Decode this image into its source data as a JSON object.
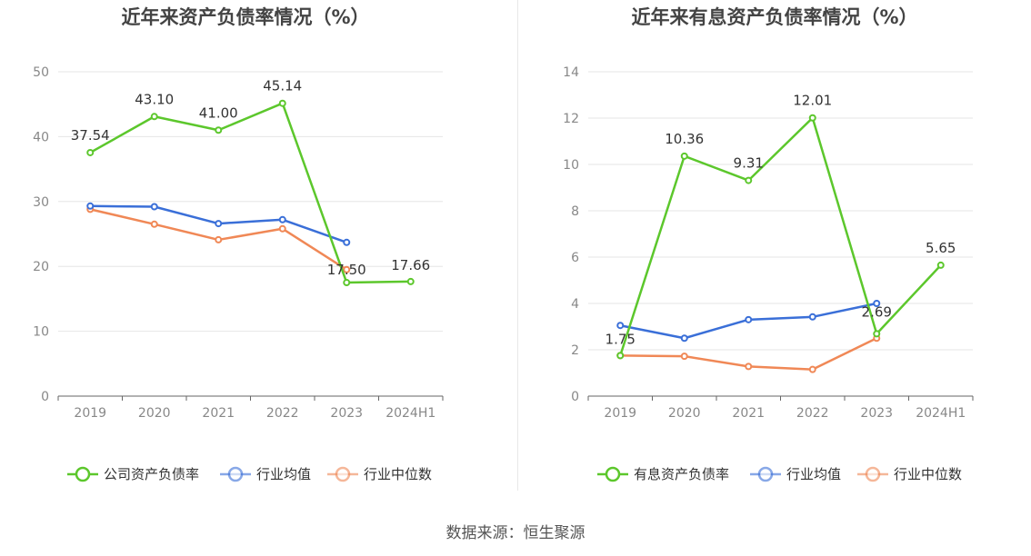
{
  "source": "数据来源：恒生聚源",
  "chart_data": [
    {
      "type": "line",
      "title": "近年来资产负债率情况（%）",
      "categories": [
        "2019",
        "2020",
        "2021",
        "2022",
        "2023",
        "2024H1"
      ],
      "ylim": [
        0,
        50
      ],
      "yticks": [
        "0",
        "10",
        "20",
        "30",
        "40",
        "50"
      ],
      "grid": true,
      "legend_position": "bottom",
      "series": [
        {
          "name": "公司资产负债率",
          "color": "#5cc72c",
          "values": [
            37.54,
            43.1,
            41.0,
            45.14,
            17.5,
            17.66
          ],
          "labels": [
            "37.54",
            "43.10",
            "41.00",
            "45.14",
            "17.50",
            "17.66"
          ]
        },
        {
          "name": "行业均值",
          "color": "#3a6fd8",
          "values": [
            29.3,
            29.2,
            26.6,
            27.2,
            23.7,
            null
          ]
        },
        {
          "name": "行业中位数",
          "color": "#f08856",
          "values": [
            28.8,
            26.5,
            24.1,
            25.8,
            19.5,
            null
          ]
        }
      ]
    },
    {
      "type": "line",
      "title": "近年来有息资产负债率情况（%）",
      "categories": [
        "2019",
        "2020",
        "2021",
        "2022",
        "2023",
        "2024H1"
      ],
      "ylim": [
        0,
        14
      ],
      "yticks": [
        "0",
        "2",
        "4",
        "6",
        "8",
        "10",
        "12",
        "14"
      ],
      "grid": true,
      "legend_position": "bottom",
      "series": [
        {
          "name": "有息资产负债率",
          "color": "#5cc72c",
          "values": [
            1.75,
            10.36,
            9.31,
            12.01,
            2.69,
            5.65
          ],
          "labels": [
            "1.75",
            "10.36",
            "9.31",
            "12.01",
            "2.69",
            "5.65"
          ]
        },
        {
          "name": "行业均值",
          "color": "#3a6fd8",
          "values": [
            3.05,
            2.5,
            3.3,
            3.42,
            4.0,
            null
          ]
        },
        {
          "name": "行业中位数",
          "color": "#f08856",
          "values": [
            1.75,
            1.72,
            1.28,
            1.15,
            2.5,
            null
          ]
        }
      ]
    }
  ]
}
